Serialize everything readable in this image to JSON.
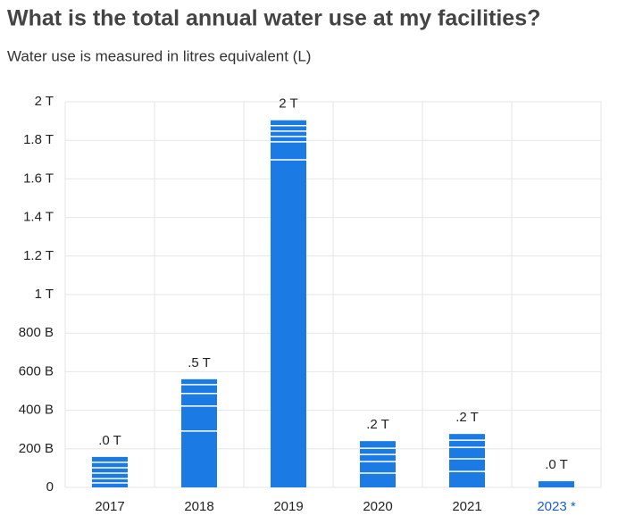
{
  "chart_data": {
    "type": "stacked_bar",
    "title": "What is the total annual water use at my facilities?",
    "subtitle": "Water use is measured in litres equivalent (L)",
    "categories": [
      "2017",
      "2018",
      "2019",
      "2020",
      "2021",
      "2023 *"
    ],
    "category_colors": [
      "#222222",
      "#222222",
      "#222222",
      "#222222",
      "#222222",
      "#1a5fc4"
    ],
    "segments": [
      [
        23000000000,
        23000000000,
        28000000000,
        28000000000,
        28000000000,
        28000000000
      ],
      [
        292000000000,
        130000000000,
        65000000000,
        46000000000,
        28000000000
      ],
      [
        1699000000000,
        93000000000,
        28000000000,
        28000000000,
        28000000000,
        28000000000
      ],
      [
        74000000000,
        60000000000,
        37000000000,
        32000000000,
        37000000000
      ],
      [
        83000000000,
        65000000000,
        60000000000,
        37000000000,
        32000000000
      ],
      [
        32000000000
      ]
    ],
    "value_labels": [
      ".0 T",
      ".5 T",
      "2 T",
      ".2 T",
      ".2 T",
      ".0 T"
    ],
    "color": "#1b7ae4",
    "separator_color": "#ffffff",
    "ylim": [
      0,
      2000000000000
    ],
    "yticks": [
      {
        "value": 0,
        "label": "0"
      },
      {
        "value": 200000000000,
        "label": "200 B"
      },
      {
        "value": 400000000000,
        "label": "400 B"
      },
      {
        "value": 600000000000,
        "label": "600 B"
      },
      {
        "value": 800000000000,
        "label": "800 B"
      },
      {
        "value": 1000000000000,
        "label": "1 T"
      },
      {
        "value": 1200000000000,
        "label": "1.2 T"
      },
      {
        "value": 1400000000000,
        "label": "1.4 T"
      },
      {
        "value": 1600000000000,
        "label": "1.6 T"
      },
      {
        "value": 1800000000000,
        "label": "1.8 T"
      },
      {
        "value": 2000000000000,
        "label": "2 T"
      }
    ],
    "grid": true
  }
}
